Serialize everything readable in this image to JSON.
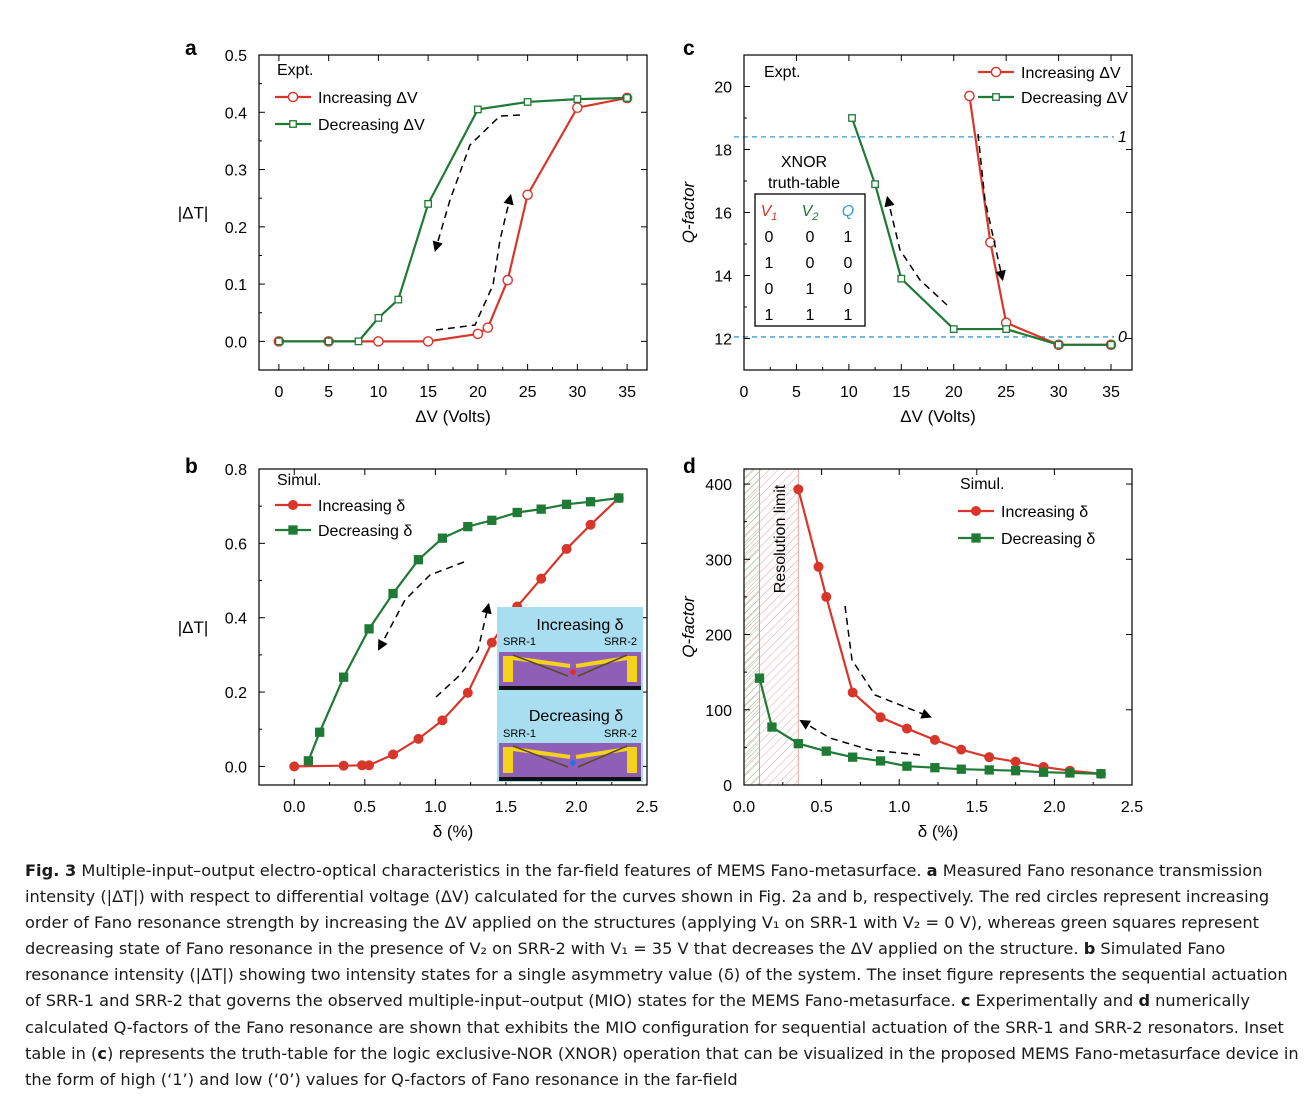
{
  "colors": {
    "increasing": "#d9362b",
    "decreasing": "#1f7a35",
    "threshold": "#3a9bd0",
    "axis": "#000000"
  },
  "charts": [
    {
      "panel": "a",
      "type": "line",
      "legend_title": "Expt.",
      "xlabel": "ΔV (Volts)",
      "ylabel": "|ΔT|",
      "xlim": [
        -2,
        37
      ],
      "ylim": [
        -0.05,
        0.5
      ],
      "xticks": [
        0,
        5,
        10,
        15,
        20,
        25,
        30,
        35
      ],
      "yticks": [
        0.0,
        0.1,
        0.2,
        0.3,
        0.4,
        0.5
      ],
      "series": [
        {
          "name": "Increasing ΔV",
          "marker": "circle-open",
          "color": "increasing",
          "x": [
            0,
            5,
            10,
            15,
            20,
            21,
            23,
            25,
            30,
            35
          ],
          "y": [
            0.0,
            0.0,
            0.0,
            0.0,
            0.013,
            0.024,
            0.107,
            0.256,
            0.408,
            0.425
          ]
        },
        {
          "name": "Decreasing ΔV",
          "marker": "square-open",
          "color": "decreasing",
          "x": [
            0,
            5,
            8,
            10,
            12,
            15,
            20,
            25,
            30,
            35
          ],
          "y": [
            0.0,
            0.0,
            0.0,
            0.041,
            0.073,
            0.24,
            0.405,
            0.418,
            0.423,
            0.425
          ]
        }
      ]
    },
    {
      "panel": "b",
      "type": "line",
      "legend_title": "Simul.",
      "xlabel": "δ (%)",
      "ylabel": "|ΔT|",
      "xlim": [
        -0.25,
        2.5
      ],
      "ylim": [
        -0.05,
        0.8
      ],
      "xticks": [
        0.0,
        0.5,
        1.0,
        1.5,
        2.0,
        2.5
      ],
      "yticks": [
        0.0,
        0.2,
        0.4,
        0.6,
        0.8
      ],
      "series": [
        {
          "name": "Increasing δ",
          "marker": "circle-filled",
          "color": "increasing",
          "x": [
            0.0,
            0.35,
            0.48,
            0.53,
            0.7,
            0.88,
            1.05,
            1.23,
            1.4,
            1.58,
            1.75,
            1.93,
            2.1,
            2.3
          ],
          "y": [
            0.0,
            0.002,
            0.003,
            0.003,
            0.032,
            0.074,
            0.124,
            0.198,
            0.333,
            0.43,
            0.505,
            0.585,
            0.65,
            0.722
          ]
        },
        {
          "name": "Decreasing δ",
          "marker": "square-filled",
          "color": "decreasing",
          "x": [
            0.1,
            0.18,
            0.35,
            0.53,
            0.7,
            0.88,
            1.05,
            1.23,
            1.4,
            1.58,
            1.75,
            1.93,
            2.1,
            2.3
          ],
          "y": [
            0.015,
            0.092,
            0.24,
            0.37,
            0.465,
            0.556,
            0.614,
            0.645,
            0.662,
            0.683,
            0.692,
            0.705,
            0.712,
            0.722
          ]
        }
      ],
      "inset": {
        "title_top": "Increasing δ",
        "title_bottom": "Decreasing δ",
        "label_left": "SRR-1",
        "label_right": "SRR-2"
      }
    },
    {
      "panel": "c",
      "type": "line",
      "legend_title": "Expt.",
      "xlabel": "ΔV (Volts)",
      "ylabel": "Q-factor",
      "xlim": [
        0,
        37
      ],
      "ylim": [
        11,
        21
      ],
      "xticks": [
        0,
        5,
        10,
        15,
        20,
        25,
        30,
        35
      ],
      "yticks": [
        12,
        14,
        16,
        18,
        20
      ],
      "thresholds": [
        {
          "y": 18.4,
          "label": "1"
        },
        {
          "y": 12.05,
          "label": "0"
        }
      ],
      "series": [
        {
          "name": "Increasing ΔV",
          "marker": "circle-open",
          "color": "increasing",
          "x": [
            21.5,
            23.5,
            25,
            30,
            35
          ],
          "y": [
            19.7,
            15.05,
            12.5,
            11.8,
            11.8
          ]
        },
        {
          "name": "Decreasing ΔV",
          "marker": "square-open",
          "color": "decreasing",
          "x": [
            10.3,
            12.5,
            15,
            20,
            25,
            30,
            35
          ],
          "y": [
            19.0,
            16.9,
            13.9,
            12.3,
            12.3,
            11.8,
            11.8
          ]
        }
      ],
      "truth_table": {
        "title_line1": "XNOR",
        "title_line2": "truth-table",
        "headers": [
          "V1",
          "V2",
          "Q"
        ],
        "rows": [
          [
            "0",
            "0",
            "1"
          ],
          [
            "1",
            "0",
            "0"
          ],
          [
            "0",
            "1",
            "0"
          ],
          [
            "1",
            "1",
            "1"
          ]
        ]
      }
    },
    {
      "panel": "d",
      "type": "line",
      "legend_title": "Simul.",
      "xlabel": "δ (%)",
      "ylabel": "Q-factor",
      "xlim": [
        0,
        2.5
      ],
      "ylim": [
        0,
        420
      ],
      "xticks": [
        0.0,
        0.5,
        1.0,
        1.5,
        2.0,
        2.5
      ],
      "yticks": [
        0,
        100,
        200,
        300,
        400
      ],
      "resolution_limit": {
        "label": "Resolution limit",
        "from": 0,
        "to": 0.35,
        "green_to": 0.1
      },
      "series": [
        {
          "name": "Increasing δ",
          "marker": "circle-filled",
          "color": "increasing",
          "x": [
            0.35,
            0.48,
            0.53,
            0.7,
            0.88,
            1.05,
            1.23,
            1.4,
            1.58,
            1.75,
            1.93,
            2.1,
            2.3
          ],
          "y": [
            393,
            290,
            250,
            123,
            90,
            75,
            60,
            47,
            37,
            31,
            24,
            19,
            15
          ]
        },
        {
          "name": "Decreasing δ",
          "marker": "square-filled",
          "color": "decreasing",
          "x": [
            0.1,
            0.18,
            0.35,
            0.53,
            0.7,
            0.88,
            1.05,
            1.23,
            1.4,
            1.58,
            1.75,
            1.93,
            2.1,
            2.3
          ],
          "y": [
            142,
            77,
            55,
            45,
            37,
            32,
            25,
            23,
            21,
            20,
            19,
            17,
            16,
            15
          ]
        }
      ]
    }
  ],
  "caption": {
    "fig_label": "Fig. 3",
    "segments": [
      {
        "b": 1,
        "t": "Fig. 3"
      },
      {
        "t": " Multiple-input–output electro-optical characteristics in the far-field features of MEMS Fano-metasurface. "
      },
      {
        "b": 1,
        "t": "a"
      },
      {
        "t": " Measured Fano resonance transmission intensity (|ΔT|) with respect to differential voltage (ΔV) calculated for the curves shown in Fig. 2a and b, respectively. The red circles represent increasing order of Fano resonance strength by increasing the ΔV applied on the structures (applying V₁ on SRR-1 with V₂ = 0 V), whereas green squares represent decreasing state of Fano resonance in the presence of V₂ on SRR-2 with V₁ = 35 V that decreases the ΔV applied on the structure. "
      },
      {
        "b": 1,
        "t": "b"
      },
      {
        "t": " Simulated Fano resonance intensity (|ΔT|) showing two intensity states for a single asymmetry value (δ) of the system. The inset figure represents the sequential actuation of SRR-1 and SRR-2 that governs the observed multiple-input–output (MIO) states for the MEMS Fano-metasurface. "
      },
      {
        "b": 1,
        "t": "c"
      },
      {
        "t": " Experimentally and "
      },
      {
        "b": 1,
        "t": "d"
      },
      {
        "t": " numerically calculated Q-factors of the Fano resonance are shown that exhibits the MIO configuration for sequential actuation of the SRR-1 and SRR-2 resonators. Inset table in ("
      },
      {
        "b": 1,
        "t": "c"
      },
      {
        "t": ") represents the truth-table for the logic exclusive-NOR (XNOR) operation that can be visualized in the proposed MEMS Fano-metasurface device in the form of high (‘1’) and low (‘0’) values for Q-factors of Fano resonance in the far-field"
      }
    ]
  }
}
